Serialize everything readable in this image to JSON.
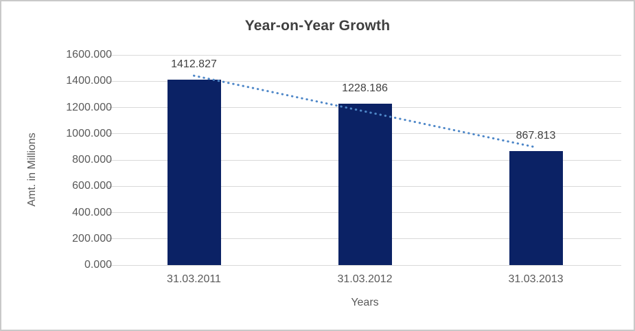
{
  "frame": {
    "background": "#ffffff",
    "border_color": "#c9c9c9"
  },
  "chart_data": {
    "type": "bar",
    "title": "Year-on-Year Growth",
    "xlabel": "Years",
    "ylabel": "Amt. in Millions",
    "categories": [
      "31.03.2011",
      "31.03.2012",
      "31.03.2013"
    ],
    "values": [
      1412.827,
      1228.186,
      867.813
    ],
    "data_labels": [
      "1412.827",
      "1228.186",
      "867.813"
    ],
    "ylim": [
      0,
      1600
    ],
    "ytick_step": 200,
    "ytick_labels": [
      "0.000",
      "200.000",
      "400.000",
      "600.000",
      "800.000",
      "1000.000",
      "1200.000",
      "1400.000",
      "1600.000"
    ],
    "grid": true,
    "legend": "none",
    "bar_color": "#0b2265",
    "gridline_color": "#d9d9d9",
    "tick_label_color": "#595959",
    "data_label_color": "#404040",
    "title_color": "#3f3f3f",
    "trendline": {
      "style": "dotted",
      "color": "#4e87c8",
      "fitted_values": [
        1442.1,
        1169.6,
        897.1
      ]
    }
  }
}
